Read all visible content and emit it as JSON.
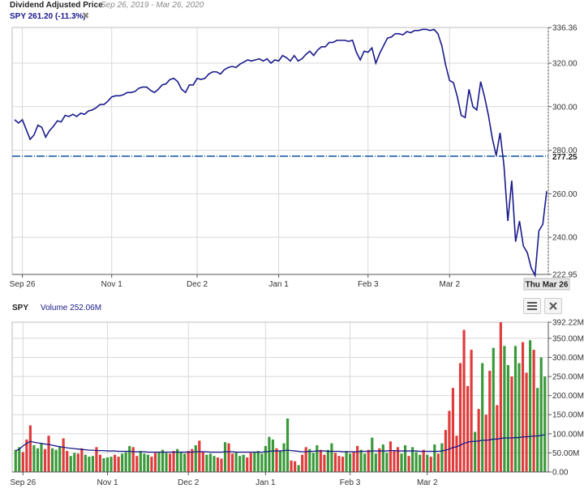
{
  "header": {
    "title": "Dividend Adjusted Price",
    "range": "Sep 26, 2019 - Mar 26, 2020",
    "series_label": "SPY 261.20 (-11.3%)",
    "close_glyph": "✖"
  },
  "volume_header": {
    "ticker": "SPY",
    "label": "Volume 252.06M",
    "menu_icon": "menu-icon",
    "close_icon": "close-icon"
  },
  "colors": {
    "price_line": "#1a1a8c",
    "reference_line": "#1f5fa8",
    "volume_up": "#3a9a3a",
    "volume_down": "#e03c3c",
    "volume_avg": "#1a1a8c",
    "grid": "#d8d8d8"
  },
  "chart_data": [
    {
      "type": "line",
      "title": "Dividend Adjusted Price",
      "ylim": [
        222.95,
        336.36
      ],
      "y_ticks": [
        "336.36",
        "320.00",
        "300.00",
        "280.00",
        "260.00",
        "240.00",
        "222.95"
      ],
      "reference_line": {
        "value": 277.25,
        "label": "277.25"
      },
      "x_ticks": [
        "Sep 26",
        "Nov 1",
        "Dec 2",
        "Jan 1",
        "Feb 3",
        "Mar 2"
      ],
      "cursor_label": "Thu Mar 26",
      "grid": true,
      "series": [
        {
          "name": "SPY",
          "values": [
            294.0,
            292.5,
            294.0,
            289.5,
            285.0,
            287.0,
            291.5,
            290.5,
            286.0,
            289.0,
            291.0,
            293.5,
            293.0,
            296.0,
            295.5,
            296.5,
            295.5,
            297.0,
            296.5,
            298.0,
            298.5,
            299.5,
            301.0,
            301.0,
            302.5,
            304.5,
            305.0,
            305.0,
            305.5,
            306.5,
            306.5,
            307.0,
            308.5,
            309.0,
            309.0,
            307.5,
            306.5,
            308.0,
            310.0,
            310.5,
            312.5,
            313.0,
            311.5,
            308.0,
            306.5,
            310.0,
            310.0,
            313.0,
            312.5,
            313.0,
            315.0,
            316.0,
            316.0,
            315.0,
            317.0,
            318.0,
            318.5,
            318.0,
            319.5,
            320.5,
            321.5,
            321.0,
            321.5,
            322.0,
            321.0,
            322.0,
            320.0,
            321.5,
            321.0,
            323.5,
            322.5,
            321.0,
            323.5,
            321.0,
            322.0,
            324.0,
            325.5,
            323.5,
            326.0,
            327.5,
            327.5,
            329.5,
            329.5,
            330.5,
            330.5,
            330.5,
            330.0,
            330.5,
            325.0,
            321.5,
            325.5,
            325.0,
            327.0,
            320.0,
            324.5,
            328.0,
            331.5,
            332.0,
            333.5,
            333.5,
            333.0,
            334.5,
            334.0,
            335.0,
            335.0,
            335.5,
            335.5,
            335.0,
            335.5,
            333.5,
            328.0,
            319.0,
            312.0,
            311.0,
            304.5,
            296.0,
            295.0,
            308.0,
            300.0,
            298.5,
            311.5,
            304.5,
            296.0,
            285.5,
            277.5,
            288.0,
            273.0,
            247.5,
            266.0,
            238.0,
            247.5,
            236.0,
            233.0,
            226.0,
            222.5,
            243.0,
            246.0,
            261.2
          ]
        }
      ]
    },
    {
      "type": "bar",
      "title": "Volume",
      "ylim": [
        0,
        392.22
      ],
      "y_ticks": [
        "392.22M",
        "350.00M",
        "300.00M",
        "250.00M",
        "200.00M",
        "150.00M",
        "100.00M",
        "50.00M",
        "0.00"
      ],
      "x_ticks": [
        "Sep 26",
        "Nov 1",
        "Dec 2",
        "Jan 1",
        "Feb 3",
        "Mar 2"
      ],
      "grid": true,
      "series": [
        {
          "name": "Volume",
          "values": [
            58,
            65,
            52,
            85,
            122,
            70,
            62,
            75,
            60,
            95,
            62,
            58,
            68,
            88,
            55,
            42,
            50,
            48,
            62,
            45,
            40,
            42,
            65,
            45,
            36,
            38,
            40,
            45,
            40,
            48,
            52,
            68,
            65,
            42,
            55,
            48,
            45,
            40,
            50,
            52,
            58,
            50,
            48,
            55,
            60,
            52,
            48,
            55,
            60,
            70,
            82,
            52,
            45,
            48,
            42,
            38,
            35,
            78,
            75,
            48,
            52,
            42,
            45,
            38,
            50,
            52,
            55,
            48,
            68,
            92,
            85,
            62,
            55,
            75,
            140,
            30,
            28,
            18,
            45,
            65,
            60,
            50,
            70,
            58,
            45,
            58,
            75,
            50,
            42,
            40,
            55,
            48,
            52,
            68,
            58,
            48,
            58,
            90,
            48,
            62,
            72,
            50,
            80,
            55,
            65,
            48,
            70,
            42,
            65,
            52,
            45,
            58,
            45,
            40,
            72,
            48,
            75,
            110,
            160,
            220,
            95,
            285,
            372,
            225,
            320,
            105,
            165,
            285,
            150,
            265,
            325,
            175,
            392,
            330,
            280,
            250,
            330,
            285,
            340,
            260,
            345,
            320,
            220,
            300,
            250
          ],
          "up": [
            1,
            1,
            0,
            0,
            0,
            1,
            1,
            1,
            0,
            0,
            1,
            1,
            1,
            0,
            0,
            1,
            1,
            0,
            0,
            1,
            1,
            1,
            0,
            0,
            1,
            1,
            1,
            0,
            0,
            1,
            1,
            1,
            0,
            0,
            1,
            1,
            1,
            0,
            0,
            1,
            1,
            1,
            0,
            0,
            1,
            1,
            1,
            0,
            0,
            1,
            0,
            0,
            1,
            1,
            1,
            0,
            0,
            1,
            0,
            0,
            1,
            1,
            1,
            0,
            0,
            1,
            1,
            1,
            1,
            1,
            1,
            0,
            1,
            1,
            1,
            0,
            0,
            1,
            0,
            0,
            1,
            1,
            1,
            0,
            0,
            1,
            1,
            0,
            0,
            0,
            1,
            1,
            0,
            0,
            1,
            1,
            0,
            1,
            1,
            0,
            1,
            1,
            0,
            0,
            0,
            1,
            1,
            0,
            1,
            1,
            1,
            0,
            1,
            0,
            1,
            0,
            1,
            0,
            0,
            0,
            0,
            0,
            0,
            0,
            0,
            1,
            0,
            1,
            0,
            0,
            1,
            0,
            0,
            1,
            1,
            0,
            1,
            1,
            0,
            0,
            1,
            0,
            1,
            1,
            1
          ]
        },
        {
          "name": "Average",
          "values": [
            55,
            60,
            68,
            75,
            80,
            78,
            76,
            75,
            73,
            72,
            70,
            68,
            66,
            65,
            63,
            62,
            61,
            60,
            59,
            58,
            57,
            57,
            56,
            56,
            56,
            55,
            55,
            55,
            54,
            54,
            54,
            54,
            53,
            53,
            53,
            53,
            52,
            52,
            52,
            52,
            52,
            52,
            52,
            52,
            52,
            52,
            52,
            52,
            52,
            53,
            53,
            53,
            53,
            52,
            52,
            52,
            52,
            53,
            53,
            53,
            52,
            52,
            52,
            52,
            52,
            52,
            52,
            52,
            53,
            54,
            55,
            55,
            55,
            56,
            57,
            56,
            55,
            54,
            53,
            53,
            54,
            54,
            55,
            55,
            55,
            54,
            54,
            54,
            54,
            53,
            53,
            53,
            53,
            53,
            54,
            54,
            54,
            55,
            55,
            55,
            55,
            55,
            56,
            56,
            55,
            55,
            55,
            55,
            55,
            55,
            54,
            54,
            54,
            54,
            54,
            54,
            55,
            57,
            60,
            64,
            66,
            70,
            75,
            78,
            80,
            80,
            81,
            83,
            83,
            84,
            86,
            86,
            88,
            89,
            89,
            89,
            90,
            90,
            92,
            92,
            93,
            94,
            94,
            96,
            97
          ]
        }
      ]
    }
  ]
}
